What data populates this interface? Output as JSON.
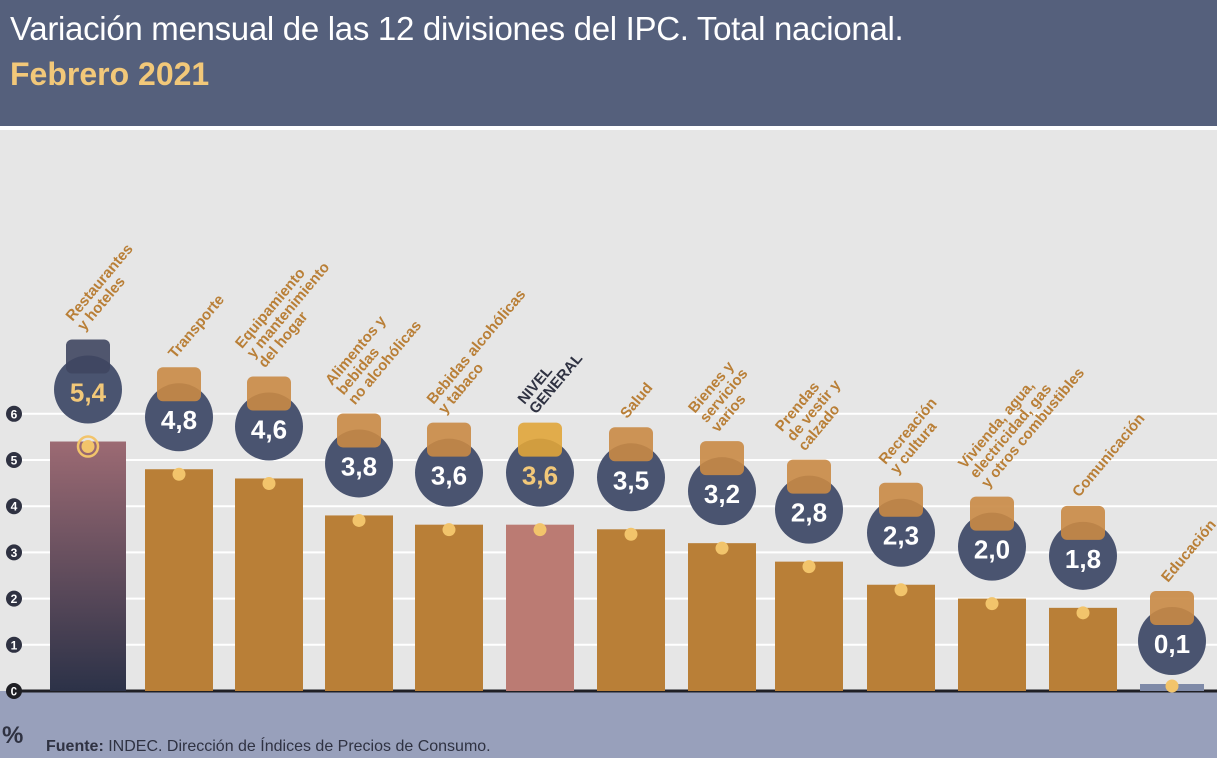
{
  "header": {
    "title": "Variación mensual de las 12 divisiones del IPC. Total nacional.",
    "subtitle": "Febrero 2021"
  },
  "footer": {
    "unit": "%",
    "source_label": "Fuente:",
    "source_text": " INDEC. Dirección de Índices de Precios de Consumo."
  },
  "colors": {
    "bar": "#b97f37",
    "bar_highlight_top": "#9c6a73",
    "bar_highlight_bottom": "#2c3248",
    "bar_general": "#bb7b73",
    "badge": "#4a5470",
    "badge_text": "#ffffff",
    "badge_text_highlight": "#f2c879",
    "label": "#b97f37",
    "label_general": "#2f3242",
    "dot": "#f2c46b",
    "grid": "#ffffff"
  },
  "chart_data": {
    "type": "bar",
    "title": "Variación mensual de las 12 divisiones del IPC. Total nacional.",
    "subtitle": "Febrero 2021",
    "ylabel": "%",
    "ylim": [
      0,
      6
    ],
    "yticks": [
      0,
      1,
      2,
      3,
      4,
      5,
      6
    ],
    "grid": true,
    "categories": [
      [
        "Restaurantes",
        "y hoteles"
      ],
      [
        "Transporte"
      ],
      [
        "Equipamiento",
        "y mantenimiento",
        "del hogar"
      ],
      [
        "Alimentos y",
        "bebidas",
        "no alcohólicas"
      ],
      [
        "Bebidas alcohólicas",
        "y tabaco"
      ],
      [
        "NIVEL",
        "GENERAL"
      ],
      [
        "Salud"
      ],
      [
        "Bienes y",
        "servicios",
        "varios"
      ],
      [
        "Prendas",
        "de vestir y",
        "calzado"
      ],
      [
        "Recreación",
        "y cultura"
      ],
      [
        "Vivienda, agua,",
        "electricidad, gas",
        "y otros combustibles"
      ],
      [
        "Comunicación"
      ],
      [
        "Educación"
      ]
    ],
    "values": [
      5.4,
      4.8,
      4.6,
      3.8,
      3.6,
      3.6,
      3.5,
      3.2,
      2.8,
      2.3,
      2.0,
      1.8,
      0.1
    ],
    "value_labels": [
      "5,4",
      "4,8",
      "4,6",
      "3,8",
      "3,6",
      "3,6",
      "3,5",
      "3,2",
      "2,8",
      "2,3",
      "2,0",
      "1,8",
      "0,1"
    ],
    "icons": [
      "restaurant-icon",
      "transport-icon",
      "washing-machine-icon",
      "roast-chicken-icon",
      "bottles-icon",
      "shopping-basket-icon",
      "first-aid-icon",
      "comb-scissors-icon",
      "tshirt-icon",
      "beach-icon",
      "lightbulb-icon",
      "smartphone-icon",
      "notebook-icon"
    ],
    "highlight_index": 0,
    "general_index": 5
  }
}
